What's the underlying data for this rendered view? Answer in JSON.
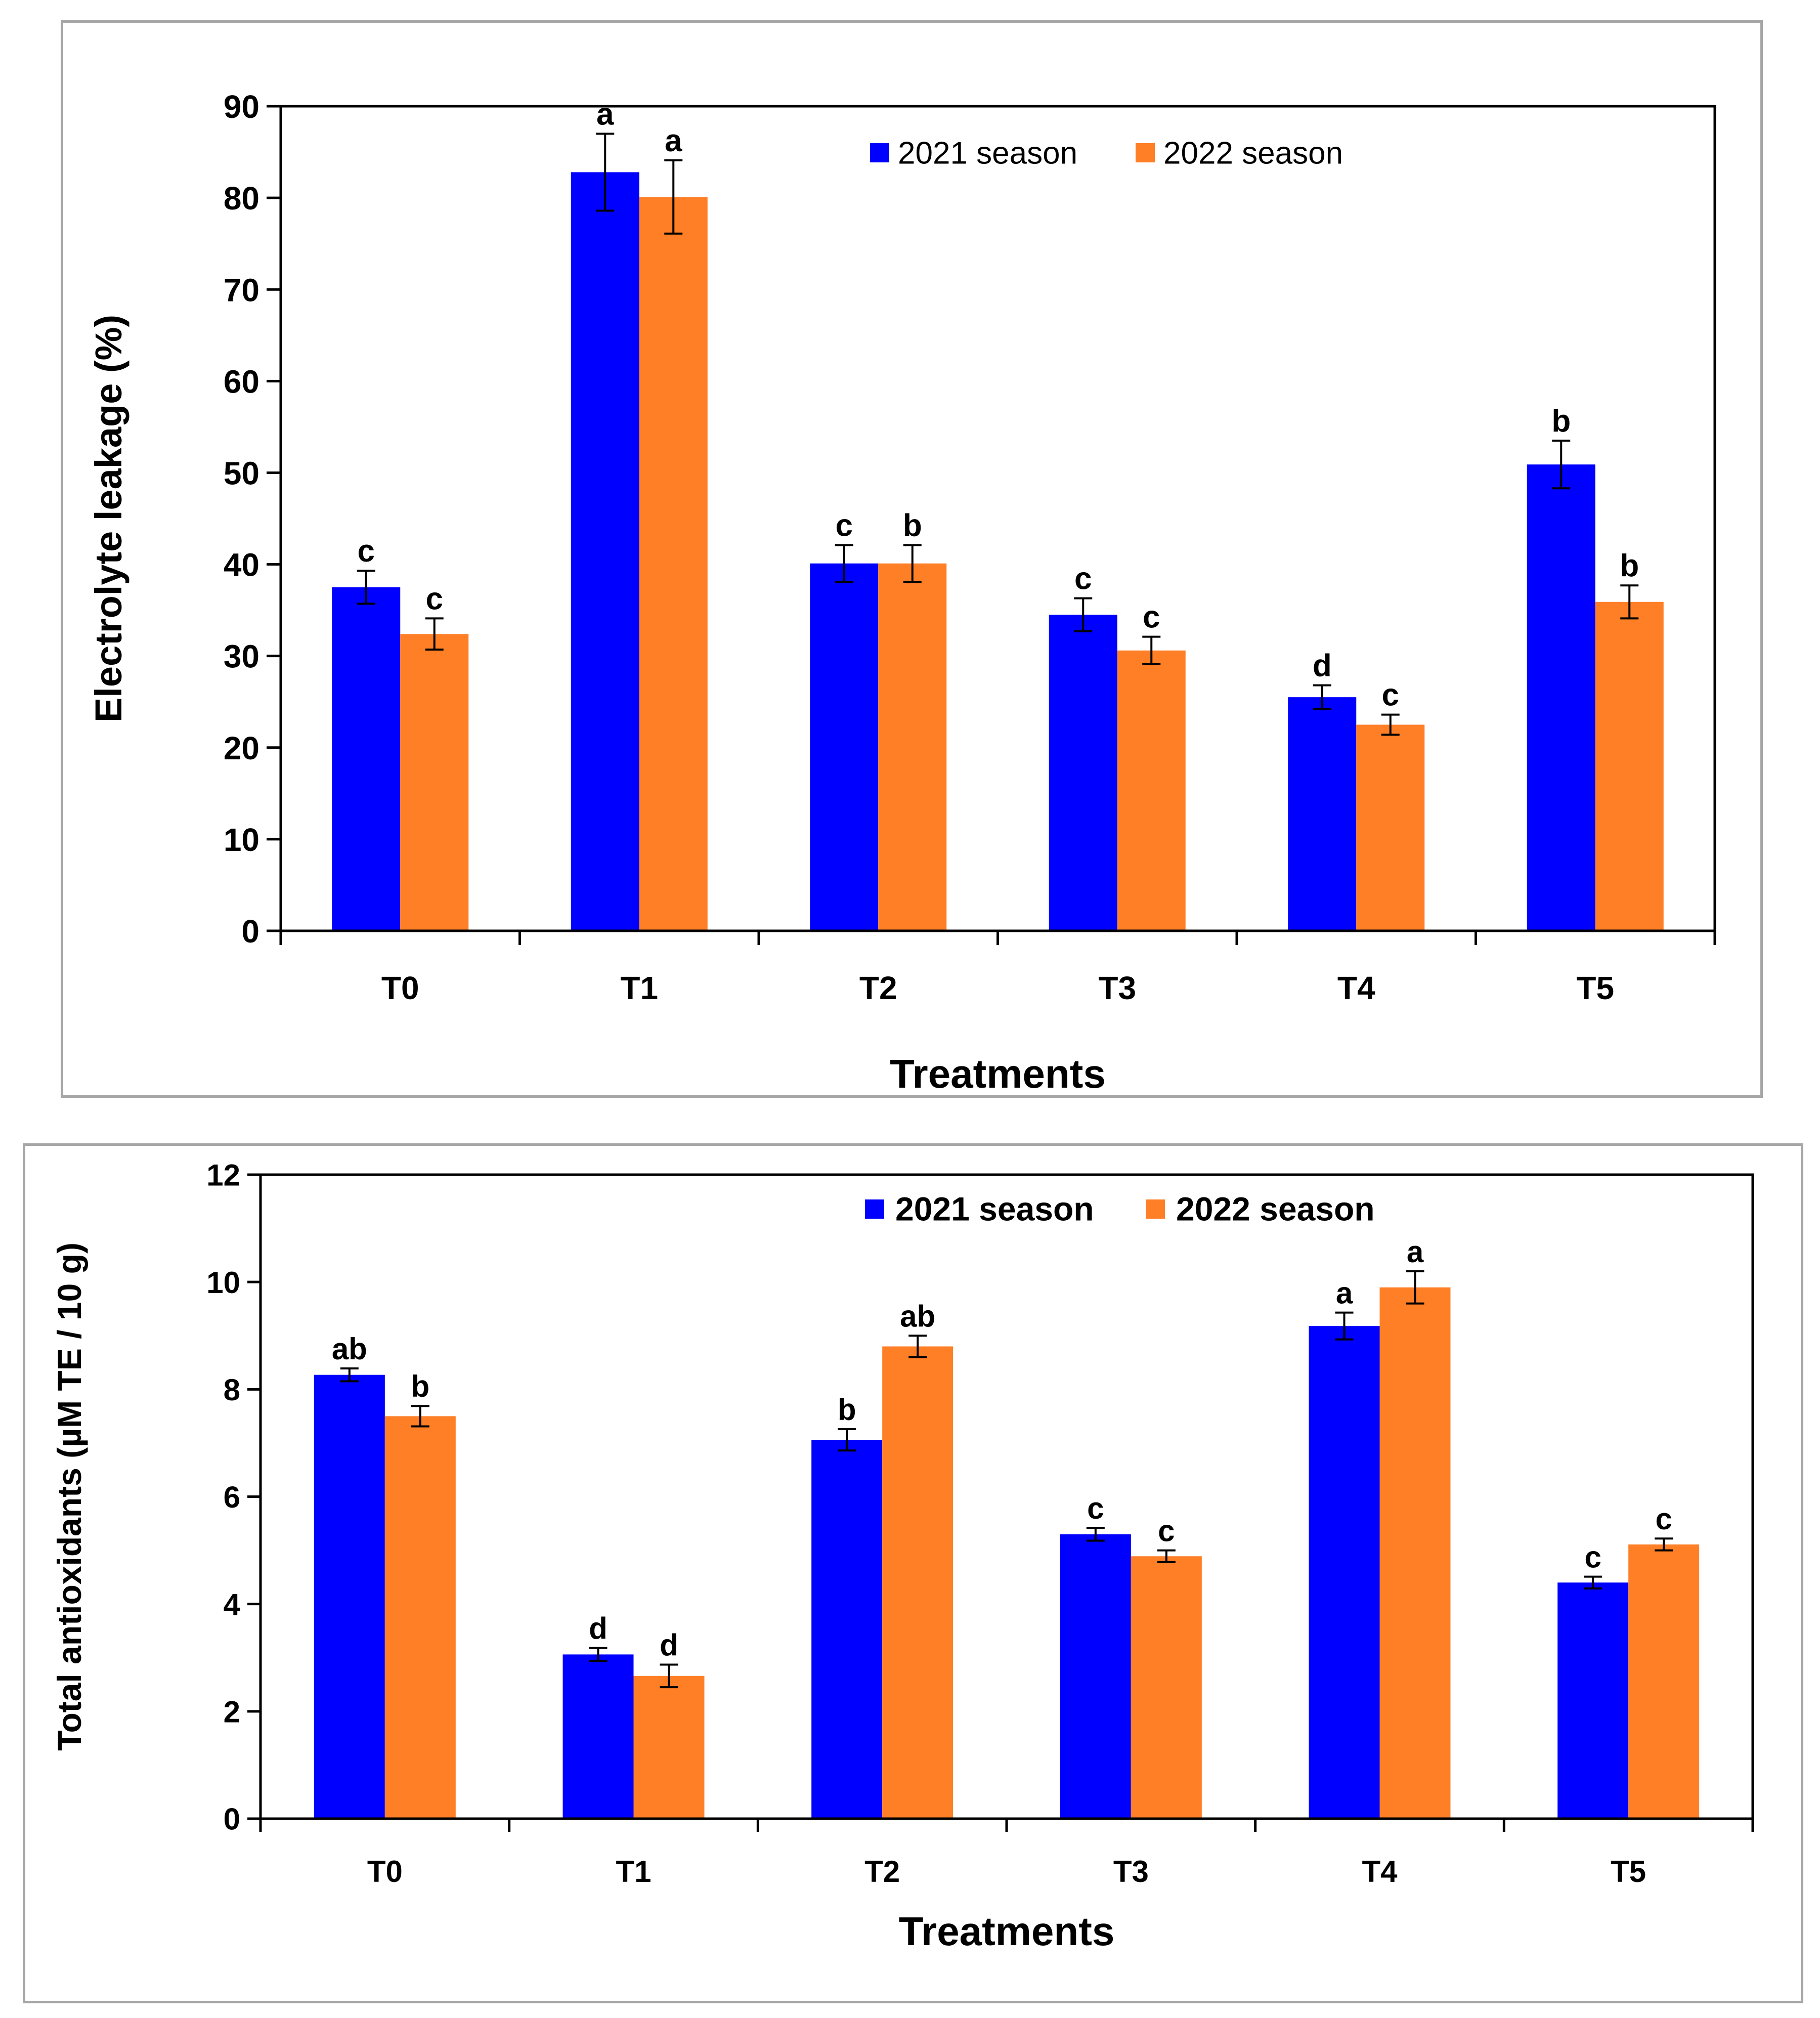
{
  "chart_data": [
    {
      "type": "bar",
      "categories": [
        "T0",
        "T1",
        "T2",
        "T3",
        "T4",
        "T5"
      ],
      "series": [
        {
          "name": "2021 season",
          "color": "#0000ff",
          "values": [
            37.5,
            82.8,
            40.1,
            34.5,
            25.5,
            50.9
          ],
          "errors": [
            1.8,
            4.2,
            2.0,
            1.8,
            1.3,
            2.6
          ],
          "labels": [
            "c",
            "a",
            "c",
            "c",
            "d",
            "b"
          ]
        },
        {
          "name": "2022 season",
          "color": "#ff7f27",
          "values": [
            32.4,
            80.1,
            40.1,
            30.6,
            22.5,
            35.9
          ],
          "errors": [
            1.7,
            4.0,
            2.0,
            1.5,
            1.1,
            1.8
          ],
          "labels": [
            "c",
            "a",
            "b",
            "c",
            "c",
            "b"
          ]
        }
      ],
      "title": "",
      "xlabel": "Treatments",
      "ylabel": "Electrolyte leakage (%)",
      "ylim": [
        0,
        90
      ],
      "yticks": [
        "0",
        "10",
        "20",
        "30",
        "40",
        "50",
        "60",
        "70",
        "80",
        "90"
      ],
      "grid": false,
      "legend_position": "top-center",
      "box": true
    },
    {
      "type": "bar",
      "categories": [
        "T0",
        "T1",
        "T2",
        "T3",
        "T4",
        "T5"
      ],
      "series": [
        {
          "name": "2021 season",
          "color": "#0000ff",
          "values": [
            8.27,
            3.06,
            7.06,
            5.3,
            9.18,
            4.4
          ],
          "errors": [
            0.12,
            0.12,
            0.2,
            0.12,
            0.25,
            0.11
          ],
          "labels": [
            "ab",
            "d",
            "b",
            "c",
            "a",
            "c"
          ]
        },
        {
          "name": "2022 season",
          "color": "#ff7f27",
          "values": [
            7.5,
            2.66,
            8.8,
            4.89,
            9.9,
            5.11
          ],
          "errors": [
            0.19,
            0.21,
            0.2,
            0.11,
            0.3,
            0.11
          ],
          "labels": [
            "b",
            "d",
            "ab",
            "c",
            "a",
            "c"
          ]
        }
      ],
      "title": "",
      "xlabel": "Treatments",
      "ylabel": "Total antioxidants (µM TE / 10 g)",
      "ylim": [
        0,
        12
      ],
      "yticks": [
        "0",
        "2",
        "4",
        "6",
        "8",
        "10",
        "12"
      ],
      "grid": false,
      "legend_position": "top-center",
      "box": true
    }
  ]
}
